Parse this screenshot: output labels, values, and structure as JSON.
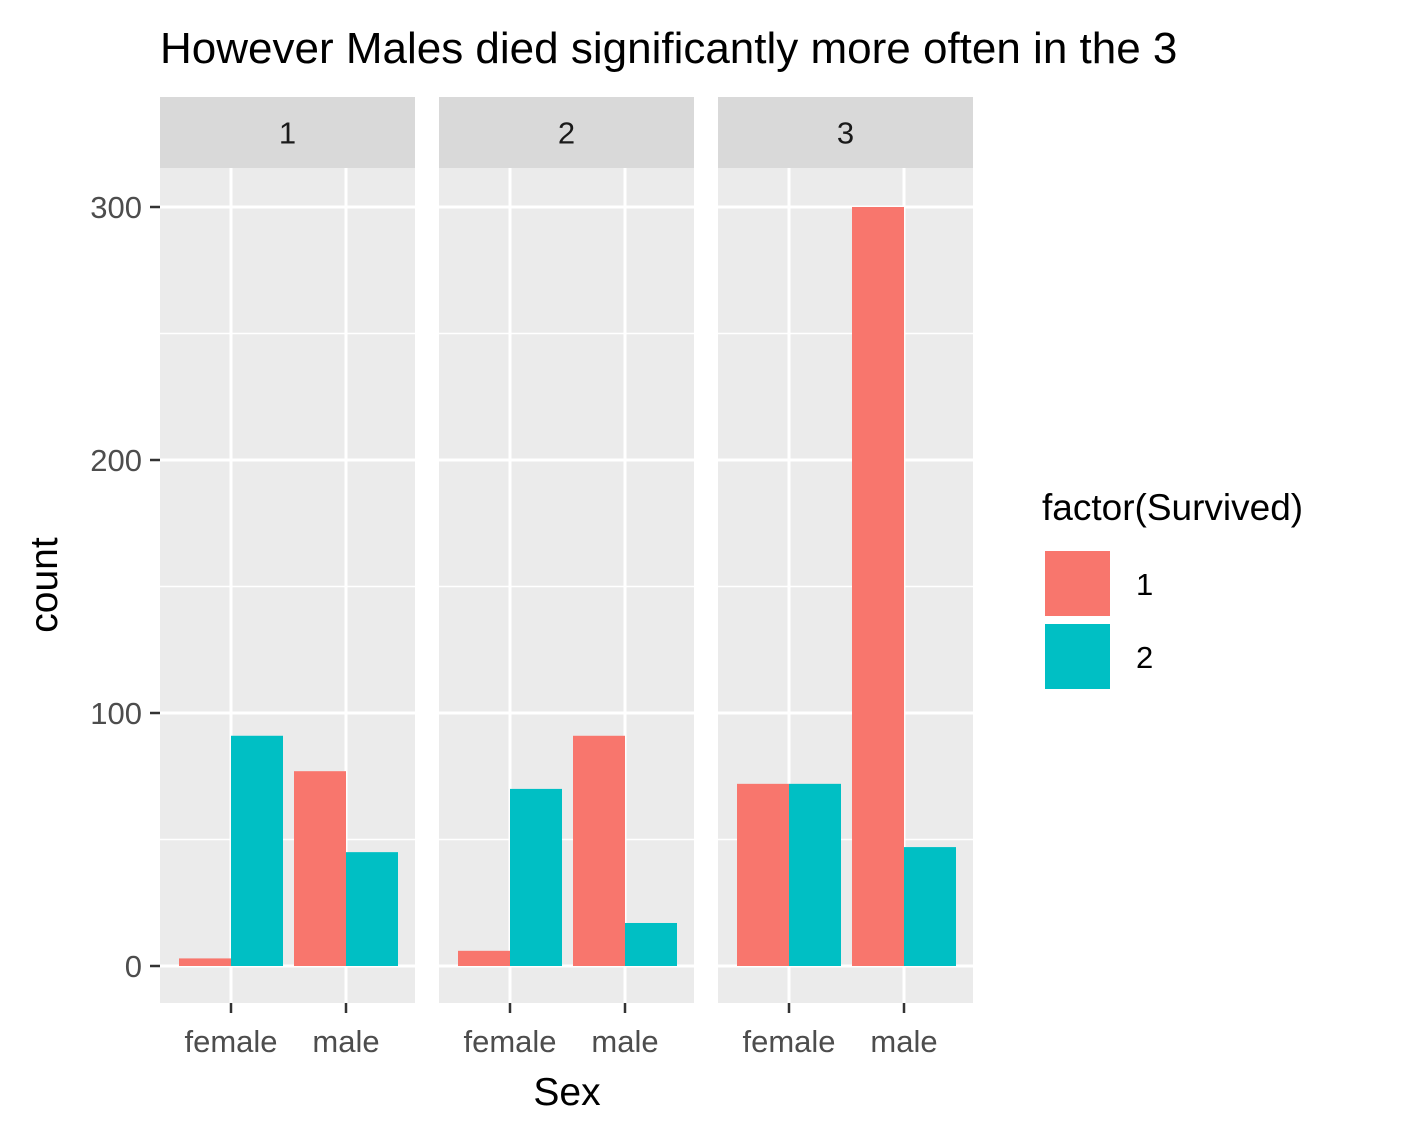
{
  "chart_data": {
    "type": "bar",
    "title": "However Males died significantly more often in the 3",
    "xlabel": "Sex",
    "ylabel": "count",
    "ylim": [
      0,
      300
    ],
    "yticks": [
      0,
      100,
      200,
      300
    ],
    "categories": [
      "female",
      "male"
    ],
    "facets": [
      {
        "label": "1",
        "series": [
          {
            "name": "1",
            "values": [
              3,
              77
            ]
          },
          {
            "name": "2",
            "values": [
              91,
              45
            ]
          }
        ]
      },
      {
        "label": "2",
        "series": [
          {
            "name": "1",
            "values": [
              6,
              91
            ]
          },
          {
            "name": "2",
            "values": [
              70,
              17
            ]
          }
        ]
      },
      {
        "label": "3",
        "series": [
          {
            "name": "1",
            "values": [
              72,
              300
            ]
          },
          {
            "name": "2",
            "values": [
              72,
              47
            ]
          }
        ]
      }
    ],
    "legend": {
      "title": "factor(Survived)",
      "position": "right",
      "entries": [
        {
          "label": "1",
          "color": "#F8766D"
        },
        {
          "label": "2",
          "color": "#00BFC4"
        }
      ]
    },
    "grid": true,
    "colors": {
      "panel_bg": "#EBEBEB",
      "strip_bg": "#D9D9D9",
      "grid": "#FFFFFF"
    }
  }
}
